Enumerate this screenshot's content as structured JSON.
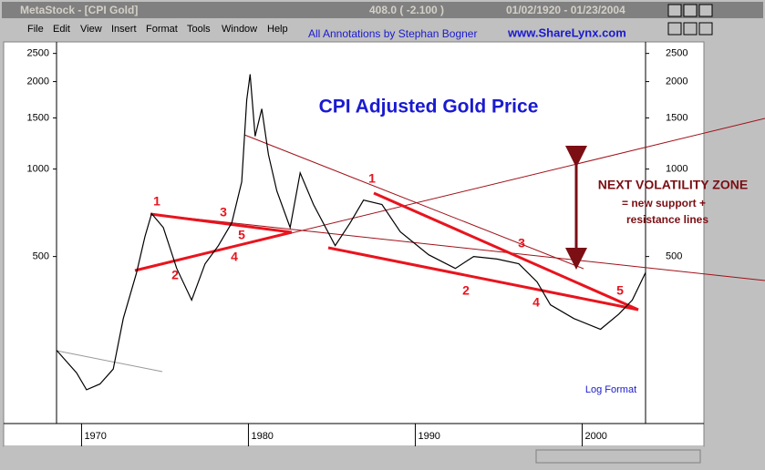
{
  "window": {
    "title": "MetaStock - [CPI Gold]",
    "quote": "408.0 ( -2.100 )",
    "date_range": "01/02/1920 - 01/23/2004"
  },
  "menu": [
    "File",
    "Edit",
    "View",
    "Insert",
    "Format",
    "Tools",
    "Window",
    "Help"
  ],
  "credits": {
    "author": "All Annotations by Stephan Bogner",
    "site": "www.ShareLynx.com"
  },
  "chart_data": {
    "type": "line",
    "title": "CPI Adjusted Gold Price",
    "log_scale": true,
    "scale_note": "Log Format",
    "x": [
      1968.5,
      1969.7,
      1970.3,
      1971.1,
      1971.9,
      1972.5,
      1973.3,
      1973.8,
      1974.2,
      1974.9,
      1975.7,
      1976.6,
      1977.4,
      1978.2,
      1979.0,
      1979.6,
      1979.9,
      1980.1,
      1980.4,
      1980.8,
      1981.2,
      1981.7,
      1982.5,
      1983.1,
      1983.9,
      1985.2,
      1986.1,
      1986.9,
      1988.0,
      1989.1,
      1990.8,
      1992.4,
      1993.5,
      1994.9,
      1996.2,
      1997.3,
      1998.1,
      1999.5,
      2001.1,
      2002.2,
      2003.0,
      2003.8
    ],
    "series": [
      {
        "name": "CPI Gold",
        "color": "#000000",
        "values": [
          238,
          199,
          174,
          182,
          205,
          306,
          440,
          586,
          702,
          629,
          455,
          354,
          472,
          545,
          653,
          903,
          1730,
          2118,
          1297,
          1612,
          1122,
          841,
          629,
          970,
          755,
          545,
          653,
          782,
          755,
          608,
          507,
          455,
          500,
          490,
          472,
          409,
          341,
          306,
          281,
          317,
          354,
          440
        ]
      }
    ],
    "xlim": [
      1968.5,
      2003.8
    ],
    "xticks": [
      1970,
      1980,
      1990,
      2000
    ],
    "ylim": [
      136,
      2700
    ],
    "yticks": [
      500,
      1000,
      1500,
      2000,
      2500
    ],
    "annotations": [
      "1",
      "3",
      "5",
      "4",
      "2",
      "1",
      "3",
      "2",
      "4",
      "5"
    ],
    "zone_label": [
      "NEXT VOLATILITY ZONE",
      "= new support +",
      "resistance lines"
    ]
  }
}
